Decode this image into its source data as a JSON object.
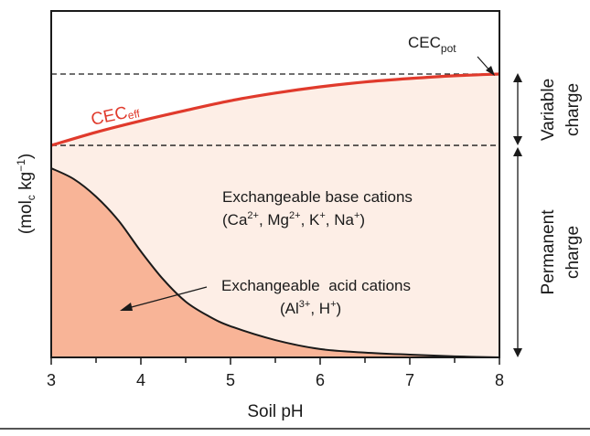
{
  "chart_data": {
    "type": "area",
    "xlabel": "Soil pH",
    "ylabel": "(mol",
    "ylabel_sub": "c",
    "ylabel_mid": " kg",
    "ylabel_sup": "−1",
    "ylabel_end": ")",
    "xlim": [
      3,
      8
    ],
    "ylim": [
      0,
      100
    ],
    "x_ticks": [
      "3",
      "4",
      "5",
      "6",
      "7",
      "8"
    ],
    "grid": false,
    "colors": {
      "cec_eff": "#e03a2c",
      "acid_fill": "#f8b497",
      "base_fill": "#fdeee6",
      "line": "#1a1a1a"
    },
    "series": [
      {
        "name": "CECeff",
        "x": [
          3,
          3.5,
          4,
          4.5,
          5,
          5.5,
          6,
          6.5,
          7,
          7.5,
          8
        ],
        "y": [
          61.2,
          65,
          68.3,
          71.3,
          74.1,
          76.3,
          78.1,
          79.5,
          80.5,
          81.3,
          81.8
        ]
      },
      {
        "name": "Exchangeable acid cations",
        "x": [
          3,
          3.25,
          3.5,
          3.75,
          4,
          4.25,
          4.5,
          4.75,
          5,
          5.5,
          6,
          6.5,
          7,
          7.5,
          8
        ],
        "y": [
          54.6,
          51.5,
          46.4,
          39.5,
          30.6,
          22.5,
          16.1,
          12,
          9,
          5,
          2.4,
          1.4,
          0.8,
          0.3,
          0
        ]
      }
    ],
    "reference_lines": {
      "cec_pot": 81.8,
      "permanent_charge": 61.2
    },
    "annotations": {
      "cec_pot": {
        "main": "CEC",
        "sub": "pot"
      },
      "cec_eff": {
        "main": "CEC",
        "sub": "eff"
      },
      "base_title": "Exchangeable base cations",
      "base_ions": {
        "open": "(Ca",
        "s1": "2+",
        "t1": ", Mg",
        "s2": "2+",
        "t2": ", K",
        "s3": "+",
        "t3": ", Na",
        "s4": "+",
        "close": ")"
      },
      "acid_title": "Exchangeable  acid cations",
      "acid_ions": {
        "open": "(Al",
        "s1": "3+",
        "t1": ", H",
        "s2": "+",
        "close": ")"
      },
      "variable_1": "Variable",
      "variable_2": "charge",
      "permanent_1": "Permanent",
      "permanent_2": "charge"
    }
  }
}
